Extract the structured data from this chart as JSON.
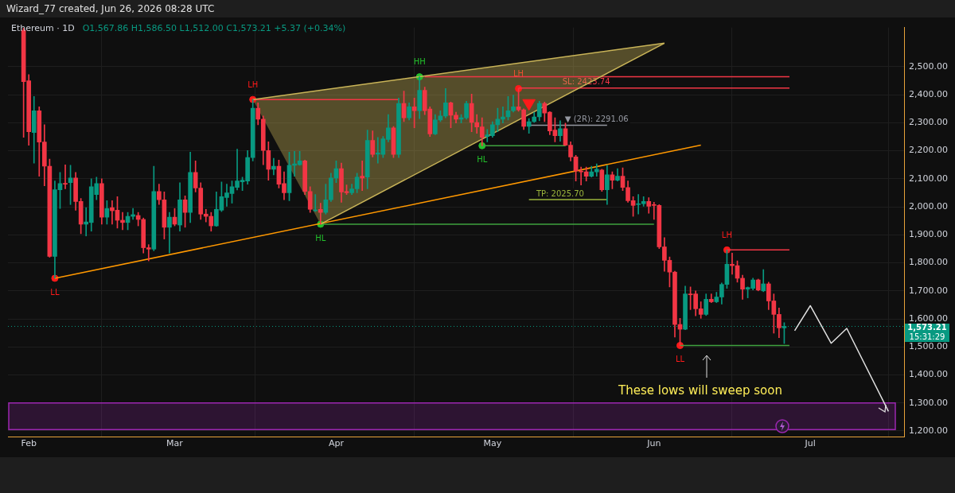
{
  "chart_data": {
    "type": "candlestick",
    "title": "Ethereum · 1D",
    "subtitle": "O1,567.86 H1,586.50 L1,512.00 C1,573.21 +5.37 (+0.34%)",
    "x": [
      "2026-01-31",
      "2026-02-01",
      "2026-02-02",
      "2026-02-03",
      "2026-02-04",
      "2026-02-05",
      "2026-02-06",
      "2026-02-07",
      "2026-02-08",
      "2026-02-09",
      "2026-02-10",
      "2026-02-11",
      "2026-02-12",
      "2026-02-13",
      "2026-02-14",
      "2026-02-15",
      "2026-02-16",
      "2026-02-17",
      "2026-02-18",
      "2026-02-19",
      "2026-02-20",
      "2026-02-21",
      "2026-02-22",
      "2026-02-23",
      "2026-02-24",
      "2026-02-25",
      "2026-02-26",
      "2026-02-27",
      "2026-02-28",
      "2026-03-01",
      "2026-03-02",
      "2026-03-03",
      "2026-03-04",
      "2026-03-05",
      "2026-03-06",
      "2026-03-07",
      "2026-03-08",
      "2026-03-09",
      "2026-03-10",
      "2026-03-11",
      "2026-03-12",
      "2026-03-13",
      "2026-03-14",
      "2026-03-15",
      "2026-03-16",
      "2026-03-17",
      "2026-03-18",
      "2026-03-19",
      "2026-03-20",
      "2026-03-21",
      "2026-03-22",
      "2026-03-23",
      "2026-03-24",
      "2026-03-25",
      "2026-03-26",
      "2026-03-27",
      "2026-03-28",
      "2026-03-29",
      "2026-03-30",
      "2026-03-31",
      "2026-04-01",
      "2026-04-02",
      "2026-04-03",
      "2026-04-04",
      "2026-04-05",
      "2026-04-06",
      "2026-04-07",
      "2026-04-08",
      "2026-04-09",
      "2026-04-10",
      "2026-04-11",
      "2026-04-12",
      "2026-04-13",
      "2026-04-14",
      "2026-04-15",
      "2026-04-16",
      "2026-04-17",
      "2026-04-18",
      "2026-04-19",
      "2026-04-20",
      "2026-04-21",
      "2026-04-22",
      "2026-04-23",
      "2026-04-24",
      "2026-04-25",
      "2026-04-26",
      "2026-04-27",
      "2026-04-28",
      "2026-04-29",
      "2026-04-30",
      "2026-05-01",
      "2026-05-02",
      "2026-05-03",
      "2026-05-04",
      "2026-05-05",
      "2026-05-06",
      "2026-05-07",
      "2026-05-08",
      "2026-05-09",
      "2026-05-10",
      "2026-05-11",
      "2026-05-12",
      "2026-05-13",
      "2026-05-14",
      "2026-05-15",
      "2026-05-16",
      "2026-05-17",
      "2026-05-18",
      "2026-05-19",
      "2026-05-20",
      "2026-05-21",
      "2026-05-22",
      "2026-05-23",
      "2026-05-24",
      "2026-05-25",
      "2026-05-26",
      "2026-05-27",
      "2026-05-28",
      "2026-05-29",
      "2026-05-30",
      "2026-05-31",
      "2026-06-01",
      "2026-06-02",
      "2026-06-03",
      "2026-06-04",
      "2026-06-05",
      "2026-06-06",
      "2026-06-07",
      "2026-06-08",
      "2026-06-09",
      "2026-06-10",
      "2026-06-11",
      "2026-06-12",
      "2026-06-13",
      "2026-06-14",
      "2026-06-15",
      "2026-06-16",
      "2026-06-17",
      "2026-06-18",
      "2026-06-19",
      "2026-06-20",
      "2026-06-21",
      "2026-06-22",
      "2026-06-23",
      "2026-06-24",
      "2026-06-25",
      "2026-06-26"
    ],
    "ohlc": [
      [
        2630,
        2638,
        2248,
        2447
      ],
      [
        2450,
        2472,
        2220,
        2268
      ],
      [
        2265,
        2394,
        2156,
        2343
      ],
      [
        2343,
        2357,
        2109,
        2231
      ],
      [
        2231,
        2293,
        2075,
        2145
      ],
      [
        2145,
        2170,
        1820,
        1823
      ],
      [
        1823,
        2092,
        1745,
        2061
      ],
      [
        2061,
        2123,
        1994,
        2083
      ],
      [
        2083,
        2150,
        2064,
        2081
      ],
      [
        2086,
        2148,
        2008,
        2103
      ],
      [
        2103,
        2123,
        1988,
        2019
      ],
      [
        2019,
        2030,
        1904,
        1938
      ],
      [
        1938,
        1997,
        1896,
        1946
      ],
      [
        1944,
        2100,
        1913,
        2072
      ],
      [
        2044,
        2106,
        2025,
        2083
      ],
      [
        2083,
        2100,
        1938,
        1963
      ],
      [
        1963,
        2022,
        1938,
        1994
      ],
      [
        1997,
        2022,
        1938,
        1986
      ],
      [
        1988,
        2036,
        1924,
        1952
      ],
      [
        1952,
        1980,
        1918,
        1944
      ],
      [
        1944,
        1980,
        1918,
        1966
      ],
      [
        1966,
        1994,
        1955,
        1972
      ],
      [
        1969,
        1980,
        1932,
        1955
      ],
      [
        1955,
        1960,
        1835,
        1854
      ],
      [
        1854,
        1865,
        1807,
        1849
      ],
      [
        1849,
        2145,
        1843,
        2055
      ],
      [
        2055,
        2081,
        2008,
        2025
      ],
      [
        2025,
        2053,
        1885,
        1927
      ],
      [
        1927,
        1980,
        1835,
        1963
      ],
      [
        1963,
        1994,
        1932,
        1938
      ],
      [
        1935,
        2086,
        1913,
        2025
      ],
      [
        2025,
        2039,
        1927,
        1980
      ],
      [
        1980,
        2195,
        1944,
        2123
      ],
      [
        2123,
        2164,
        2053,
        2067
      ],
      [
        2067,
        2086,
        1955,
        1974
      ],
      [
        1974,
        1991,
        1946,
        1966
      ],
      [
        1966,
        1980,
        1913,
        1932
      ],
      [
        1932,
        2053,
        1930,
        1991
      ],
      [
        1988,
        2089,
        1983,
        2036
      ],
      [
        2033,
        2081,
        2002,
        2050
      ],
      [
        2047,
        2092,
        2013,
        2072
      ],
      [
        2069,
        2206,
        2060,
        2092
      ],
      [
        2089,
        2106,
        2058,
        2095
      ],
      [
        2092,
        2201,
        2081,
        2176
      ],
      [
        2176,
        2383,
        2164,
        2352
      ],
      [
        2352,
        2371,
        2293,
        2313
      ],
      [
        2313,
        2324,
        2150,
        2201
      ],
      [
        2201,
        2232,
        2095,
        2134
      ],
      [
        2134,
        2173,
        2114,
        2145
      ],
      [
        2145,
        2167,
        2067,
        2081
      ],
      [
        2083,
        2125,
        2025,
        2050
      ],
      [
        2050,
        2195,
        2022,
        2148
      ],
      [
        2148,
        2198,
        2109,
        2153
      ],
      [
        2150,
        2198,
        2148,
        2164
      ],
      [
        2164,
        2167,
        2044,
        2055
      ],
      [
        2055,
        2072,
        1980,
        1991
      ],
      [
        1986,
        2044,
        1983,
        1988
      ],
      [
        1991,
        2013,
        1938,
        1980
      ],
      [
        1980,
        2081,
        1974,
        2025
      ],
      [
        2025,
        2120,
        2019,
        2103
      ],
      [
        2103,
        2164,
        2086,
        2136
      ],
      [
        2136,
        2156,
        2016,
        2053
      ],
      [
        2055,
        2078,
        2044,
        2050
      ],
      [
        2050,
        2081,
        2044,
        2064
      ],
      [
        2064,
        2120,
        2050,
        2106
      ],
      [
        2109,
        2164,
        2058,
        2103
      ],
      [
        2106,
        2274,
        2064,
        2237
      ],
      [
        2237,
        2271,
        2178,
        2187
      ],
      [
        2188,
        2248,
        2156,
        2192
      ],
      [
        2187,
        2251,
        2176,
        2243
      ],
      [
        2240,
        2329,
        2232,
        2282
      ],
      [
        2282,
        2287,
        2176,
        2187
      ],
      [
        2187,
        2388,
        2176,
        2369
      ],
      [
        2369,
        2413,
        2304,
        2318
      ],
      [
        2318,
        2371,
        2310,
        2357
      ],
      [
        2357,
        2388,
        2282,
        2343
      ],
      [
        2343,
        2464,
        2315,
        2416
      ],
      [
        2416,
        2427,
        2329,
        2343
      ],
      [
        2349,
        2357,
        2251,
        2260
      ],
      [
        2260,
        2329,
        2257,
        2310
      ],
      [
        2310,
        2343,
        2304,
        2324
      ],
      [
        2324,
        2422,
        2318,
        2371
      ],
      [
        2371,
        2374,
        2282,
        2327
      ],
      [
        2327,
        2338,
        2299,
        2313
      ],
      [
        2313,
        2329,
        2299,
        2318
      ],
      [
        2318,
        2377,
        2313,
        2369
      ],
      [
        2369,
        2402,
        2268,
        2301
      ],
      [
        2301,
        2329,
        2262,
        2285
      ],
      [
        2285,
        2318,
        2218,
        2248
      ],
      [
        2251,
        2276,
        2232,
        2257
      ],
      [
        2254,
        2304,
        2248,
        2293
      ],
      [
        2293,
        2352,
        2268,
        2313
      ],
      [
        2313,
        2357,
        2299,
        2321
      ],
      [
        2321,
        2394,
        2310,
        2343
      ],
      [
        2343,
        2399,
        2338,
        2357
      ],
      [
        2357,
        2422,
        2341,
        2346
      ],
      [
        2346,
        2350,
        2276,
        2287
      ],
      [
        2287,
        2315,
        2262,
        2304
      ],
      [
        2304,
        2338,
        2301,
        2321
      ],
      [
        2321,
        2377,
        2307,
        2369
      ],
      [
        2369,
        2374,
        2304,
        2335
      ],
      [
        2338,
        2340,
        2257,
        2271
      ],
      [
        2274,
        2318,
        2232,
        2254
      ],
      [
        2254,
        2307,
        2234,
        2279
      ],
      [
        2279,
        2299,
        2218,
        2220
      ],
      [
        2220,
        2232,
        2164,
        2178
      ],
      [
        2178,
        2184,
        2092,
        2128
      ],
      [
        2128,
        2142,
        2078,
        2125
      ],
      [
        2125,
        2142,
        2092,
        2109
      ],
      [
        2109,
        2145,
        2106,
        2125
      ],
      [
        2125,
        2153,
        2109,
        2134
      ],
      [
        2131,
        2134,
        2055,
        2061
      ],
      [
        2061,
        2148,
        2008,
        2114
      ],
      [
        2114,
        2125,
        2064,
        2095
      ],
      [
        2095,
        2136,
        2092,
        2109
      ],
      [
        2109,
        2139,
        2058,
        2069
      ],
      [
        2069,
        2092,
        2016,
        2022
      ],
      [
        2022,
        2036,
        1966,
        2005
      ],
      [
        2008,
        2044,
        1974,
        2011
      ],
      [
        2011,
        2036,
        2002,
        2019
      ],
      [
        2019,
        2033,
        1977,
        2002
      ],
      [
        2008,
        2016,
        1955,
        2005
      ],
      [
        2005,
        2008,
        1851,
        1857
      ],
      [
        1857,
        1890,
        1770,
        1809
      ],
      [
        1809,
        1821,
        1714,
        1767
      ],
      [
        1767,
        1770,
        1535,
        1580
      ],
      [
        1580,
        1602,
        1505,
        1563
      ],
      [
        1563,
        1717,
        1561,
        1689
      ],
      [
        1689,
        1714,
        1633,
        1686
      ],
      [
        1689,
        1700,
        1611,
        1636
      ],
      [
        1636,
        1661,
        1602,
        1616
      ],
      [
        1616,
        1689,
        1612,
        1670
      ],
      [
        1670,
        1689,
        1658,
        1661
      ],
      [
        1661,
        1695,
        1658,
        1678
      ],
      [
        1678,
        1728,
        1653,
        1723
      ],
      [
        1723,
        1846,
        1709,
        1795
      ],
      [
        1795,
        1835,
        1759,
        1790
      ],
      [
        1790,
        1807,
        1731,
        1745
      ],
      [
        1745,
        1756,
        1670,
        1706
      ],
      [
        1706,
        1714,
        1675,
        1712
      ],
      [
        1709,
        1745,
        1703,
        1739
      ],
      [
        1739,
        1742,
        1700,
        1703
      ],
      [
        1700,
        1776,
        1697,
        1725
      ],
      [
        1725,
        1731,
        1633,
        1664
      ],
      [
        1664,
        1689,
        1549,
        1616
      ],
      [
        1616,
        1639,
        1533,
        1568
      ],
      [
        1567.86,
        1586.5,
        1512,
        1573.21
      ]
    ],
    "colors": [
      "#f23645",
      "#f23645",
      "#089981",
      "#f23645",
      "#f23645",
      "#f23645",
      "#089981",
      "#089981",
      "#f23645",
      "#089981",
      "#f23645",
      "#f23645",
      "#089981",
      "#089981",
      "#089981",
      "#f23645",
      "#089981",
      "#f23645",
      "#f23645",
      "#f23645",
      "#089981",
      "#089981",
      "#f23645",
      "#f23645",
      "#f23645",
      "#089981",
      "#f23645",
      "#f23645",
      "#089981",
      "#f23645",
      "#089981",
      "#f23645",
      "#089981",
      "#f23645",
      "#f23645",
      "#f23645",
      "#f23645",
      "#089981",
      "#089981",
      "#089981",
      "#089981",
      "#089981",
      "#089981",
      "#089981",
      "#089981",
      "#f23645",
      "#f23645",
      "#f23645",
      "#089981",
      "#f23645",
      "#f23645",
      "#089981",
      "#089981",
      "#089981",
      "#f23645",
      "#f23645",
      "#089981",
      "#f23645",
      "#089981",
      "#089981",
      "#089981",
      "#f23645",
      "#f23645",
      "#089981",
      "#089981",
      "#f23645",
      "#089981",
      "#f23645",
      "#089981",
      "#089981",
      "#089981",
      "#f23645",
      "#089981",
      "#f23645",
      "#089981",
      "#f23645",
      "#089981",
      "#f23645",
      "#f23645",
      "#089981",
      "#089981",
      "#089981",
      "#f23645",
      "#f23645",
      "#089981",
      "#089981",
      "#f23645",
      "#f23645",
      "#f23645",
      "#089981",
      "#089981",
      "#089981",
      "#089981",
      "#089981",
      "#089981",
      "#f23645",
      "#f23645",
      "#089981",
      "#089981",
      "#089981",
      "#f23645",
      "#f23645",
      "#f23645",
      "#089981",
      "#f23645",
      "#f23645",
      "#f23645",
      "#f23645",
      "#f23645",
      "#089981",
      "#089981",
      "#f23645",
      "#089981",
      "#f23645",
      "#089981",
      "#f23645",
      "#f23645",
      "#f23645",
      "#089981",
      "#089981",
      "#f23645",
      "#f23645",
      "#f23645",
      "#f23645",
      "#f23645",
      "#f23645",
      "#f23645",
      "#089981",
      "#f23645",
      "#f23645",
      "#f23645",
      "#089981",
      "#f23645",
      "#089981",
      "#089981",
      "#089981",
      "#f23645",
      "#f23645",
      "#f23645",
      "#089981",
      "#089981",
      "#f23645",
      "#089981",
      "#f23645",
      "#f23645",
      "#f23645",
      "#089981"
    ],
    "series": [
      {
        "type": "line",
        "color": "#c9b458",
        "x": [
          "2026-03-16",
          "2026-03-29",
          "2026-06-03"
        ],
        "values": [
          2383,
          2416,
          2584
        ],
        "lower": [
          2383,
          1938,
          2584
        ],
        "upper": [
          2383,
          2416,
          2584
        ]
      },
      {
        "type": "line",
        "color": "#c9b458",
        "x": [
          "2026-03-29",
          "2026-06-03"
        ],
        "values": [
          1938,
          2584
        ]
      },
      {
        "type": "line",
        "color": "#ff9800",
        "x": [
          "2026-02-06",
          "2026-06-10"
        ],
        "values": [
          1745,
          2220
        ]
      },
      {
        "type": "line",
        "color": "#f23645",
        "x": [
          "2026-03-16",
          "2026-04-13"
        ],
        "values": [
          2383,
          2383
        ]
      },
      {
        "type": "line",
        "color": "#f23645",
        "x": [
          "2026-04-18",
          "2026-06-27"
        ],
        "values": [
          2464,
          2464
        ]
      },
      {
        "type": "line",
        "color": "#f23645",
        "x": [
          "2026-05-06",
          "2026-06-27"
        ],
        "values": [
          2423.74,
          2423.74
        ]
      },
      {
        "type": "line",
        "color": "#3fa33f",
        "x": [
          "2026-04-29",
          "2026-05-15"
        ],
        "values": [
          2218,
          2218
        ]
      },
      {
        "type": "line",
        "color": "#9598a1",
        "x": [
          "2026-05-08",
          "2026-05-23"
        ],
        "values": [
          2291.06,
          2291.06
        ]
      },
      {
        "type": "line",
        "color": "#9bb53c",
        "x": [
          "2026-05-08",
          "2026-05-23"
        ],
        "values": [
          2025.7,
          2025.7
        ]
      },
      {
        "type": "line",
        "color": "#3fa33f",
        "x": [
          "2026-03-29",
          "2026-06-01"
        ],
        "values": [
          1938,
          1938
        ]
      },
      {
        "type": "line",
        "color": "#f23645",
        "x": [
          "2026-06-15",
          "2026-06-27"
        ],
        "values": [
          1846,
          1846
        ]
      },
      {
        "type": "line",
        "color": "#3fa33f",
        "x": [
          "2026-06-06",
          "2026-06-27"
        ],
        "values": [
          1505,
          1505
        ]
      },
      {
        "type": "line",
        "color": "#e0e0e0",
        "x": [
          "2026-06-28",
          "2026-07-01",
          "2026-07-05",
          "2026-07-08",
          "2026-07-16"
        ],
        "values": [
          1558,
          1647,
          1513,
          1566,
          1270
        ]
      },
      {
        "type": "scatter",
        "marker": "circle",
        "color": "#ff1a1a",
        "x": [
          "2026-02-06",
          "2026-03-16",
          "2026-05-06",
          "2026-06-06",
          "2026-06-15"
        ],
        "values": [
          1745,
          2383,
          2422,
          1505,
          1846
        ]
      },
      {
        "type": "scatter",
        "marker": "circle",
        "color": "#22c02b",
        "x": [
          "2026-03-29",
          "2026-04-17",
          "2026-04-29"
        ],
        "values": [
          1938,
          2464,
          2218
        ]
      },
      {
        "type": "scatter",
        "marker": "triangle",
        "color": "#ff1a1a",
        "x": [
          "2026-05-08"
        ],
        "values": [
          2370
        ]
      }
    ],
    "annotations": [
      "Wizard_77 created, Jun 26, 2026 08:28 UTC",
      "15:31:29",
      "These lows will sweep soon",
      {
        "text": "LL",
        "x": "2026-02-06",
        "y": 1745
      },
      {
        "text": "LH",
        "x": "2026-03-16",
        "y": 2383
      },
      {
        "text": "HL",
        "x": "2026-03-29",
        "y": 1938
      },
      {
        "text": "HH",
        "x": "2026-04-17",
        "y": 2464
      },
      {
        "text": "HL",
        "x": "2026-04-29",
        "y": 2218
      },
      {
        "text": "LH",
        "x": "2026-05-06",
        "y": 2422
      },
      {
        "text": "SL: 2423.74",
        "x": "2026-05-19",
        "y": 2423.74
      },
      {
        "text": "▼ (2R): 2291.06",
        "x": "2026-05-21",
        "y": 2291.06
      },
      {
        "text": "TP: 2025.70",
        "x": "2026-05-14",
        "y": 2025.7
      },
      {
        "text": "LL",
        "x": "2026-06-06",
        "y": 1505
      },
      {
        "text": "LH",
        "x": "2026-06-15",
        "y": 1846
      }
    ],
    "ref_lines": [
      {
        "axis": "y",
        "value": 1573.21,
        "label": "1,573.21",
        "color": "#089981",
        "line_style": "dotted"
      }
    ],
    "bands": [
      {
        "axis": "y",
        "from": 1205,
        "to": 1300,
        "color": "#9c27b0"
      }
    ],
    "xlim": [
      "2026-01-28",
      "2026-07-19"
    ],
    "xticks": [
      {
        "value": "2026-02-01",
        "label": "Feb"
      },
      {
        "value": "2026-03-01",
        "label": "Mar"
      },
      {
        "value": "2026-04-01",
        "label": "Apr"
      },
      {
        "value": "2026-05-01",
        "label": "May"
      },
      {
        "value": "2026-06-01",
        "label": "Jun"
      },
      {
        "value": "2026-07-01",
        "label": "Jul"
      }
    ],
    "ylim": [
      1180,
      2640
    ],
    "yticks": [
      {
        "value": 1200,
        "label": "1,200.00"
      },
      {
        "value": 1300,
        "label": "1,300.00"
      },
      {
        "value": 1400,
        "label": "1,400.00"
      },
      {
        "value": 1500,
        "label": "1,500.00"
      },
      {
        "value": 1600,
        "label": "1,600.00"
      },
      {
        "value": 1700,
        "label": "1,700.00"
      },
      {
        "value": 1800,
        "label": "1,800.00"
      },
      {
        "value": 1900,
        "label": "1,900.00"
      },
      {
        "value": 2000,
        "label": "2,000.00"
      },
      {
        "value": 2100,
        "label": "2,100.00"
      },
      {
        "value": 2200,
        "label": "2,200.00"
      },
      {
        "value": 2300,
        "label": "2,300.00"
      },
      {
        "value": 2400,
        "label": "2,400.00"
      },
      {
        "value": 2500,
        "label": "2,500.00"
      }
    ],
    "grid": true
  }
}
